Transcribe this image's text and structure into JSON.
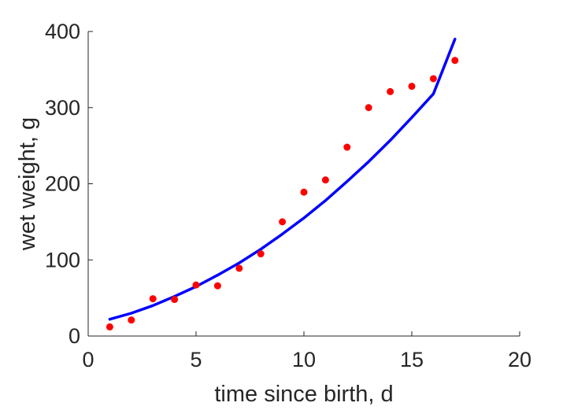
{
  "chart_data": {
    "type": "scatter",
    "title": "",
    "xlabel": "time since birth, d",
    "ylabel": "wet weight, g",
    "xlim": [
      0,
      20
    ],
    "ylim": [
      0,
      400
    ],
    "xticks": [
      0,
      5,
      10,
      15,
      20
    ],
    "yticks": [
      0,
      100,
      200,
      300,
      400
    ],
    "grid": false,
    "legend": "none",
    "series": [
      {
        "type": "scatter",
        "color": "#ff0000",
        "x": [
          1,
          2,
          3,
          4,
          5,
          6,
          7,
          8,
          9,
          10,
          11,
          12,
          13,
          14,
          15,
          16,
          17
        ],
        "y": [
          12,
          21,
          49,
          48,
          67,
          66,
          89,
          108,
          150,
          189,
          205,
          248,
          300,
          321,
          328,
          338,
          362
        ]
      },
      {
        "type": "line",
        "color": "#0000ff",
        "x": [
          1,
          2,
          3,
          4,
          5,
          6,
          7,
          8,
          9,
          10,
          11,
          12,
          13,
          14,
          15,
          16,
          17
        ],
        "y": [
          22,
          30,
          40,
          52,
          65,
          80,
          96,
          114,
          134,
          155,
          178,
          203,
          229,
          257,
          287,
          318,
          390
        ]
      }
    ]
  }
}
